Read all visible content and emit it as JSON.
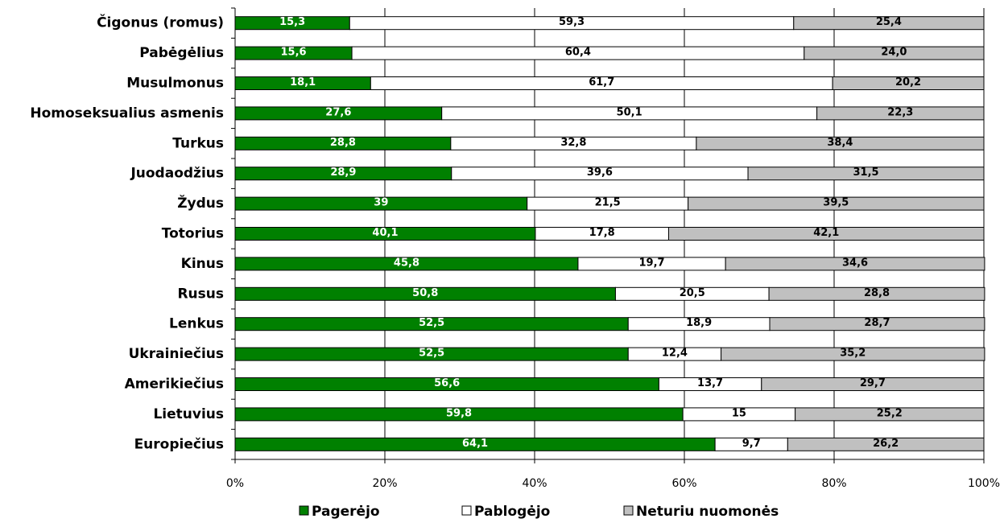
{
  "chart_data": {
    "type": "stacked-bar-horizontal",
    "categories": [
      "Čigonus (romus)",
      "Pabėgėlius",
      "Musulmonus",
      "Homoseksualius asmenis",
      "Turkus",
      "Juodaodžius",
      "Žydus",
      "Totorius",
      "Kinus",
      "Rusus",
      "Lenkus",
      "Ukrainiečius",
      "Amerikiečius",
      "Lietuvius",
      "Europiečius"
    ],
    "series": [
      {
        "name": "Pagerėjo",
        "color": "#008000",
        "values": [
          15.3,
          15.6,
          18.1,
          27.6,
          28.8,
          28.9,
          39,
          40.1,
          45.8,
          50.8,
          52.5,
          52.5,
          56.6,
          59.8,
          64.1
        ],
        "value_labels": [
          "15,3",
          "15,6",
          "18,1",
          "27,6",
          "28,8",
          "28,9",
          "39",
          "40,1",
          "45,8",
          "50,8",
          "52,5",
          "52,5",
          "56,6",
          "59,8",
          "64,1"
        ]
      },
      {
        "name": "Pablogėjo",
        "color": "#ffffff",
        "values": [
          59.3,
          60.4,
          61.7,
          50.1,
          32.8,
          39.6,
          21.5,
          17.8,
          19.7,
          20.5,
          18.9,
          12.4,
          13.7,
          15,
          9.7
        ],
        "value_labels": [
          "59,3",
          "60,4",
          "61,7",
          "50,1",
          "32,8",
          "39,6",
          "21,5",
          "17,8",
          "19,7",
          "20,5",
          "18,9",
          "12,4",
          "13,7",
          "15",
          "9,7"
        ]
      },
      {
        "name": "Neturiu nuomonės",
        "color": "#c0c0c0",
        "values": [
          25.4,
          24.0,
          20.2,
          22.3,
          38.4,
          31.5,
          39.5,
          42.1,
          34.6,
          28.8,
          28.7,
          35.2,
          29.7,
          25.2,
          26.2
        ],
        "value_labels": [
          "25,4",
          "24,0",
          "20,2",
          "22,3",
          "38,4",
          "31,5",
          "39,5",
          "42,1",
          "34,6",
          "28,8",
          "28,7",
          "35,2",
          "29,7",
          "25,2",
          "26,2"
        ]
      }
    ],
    "xlim": [
      0,
      100
    ],
    "xticks": [
      {
        "value": 0,
        "label": "0%"
      },
      {
        "value": 20,
        "label": "20%"
      },
      {
        "value": 40,
        "label": "40%"
      },
      {
        "value": 60,
        "label": "60%"
      },
      {
        "value": 80,
        "label": "80%"
      },
      {
        "value": 100,
        "label": "100%"
      }
    ],
    "grid": true,
    "legend": "bottom"
  }
}
